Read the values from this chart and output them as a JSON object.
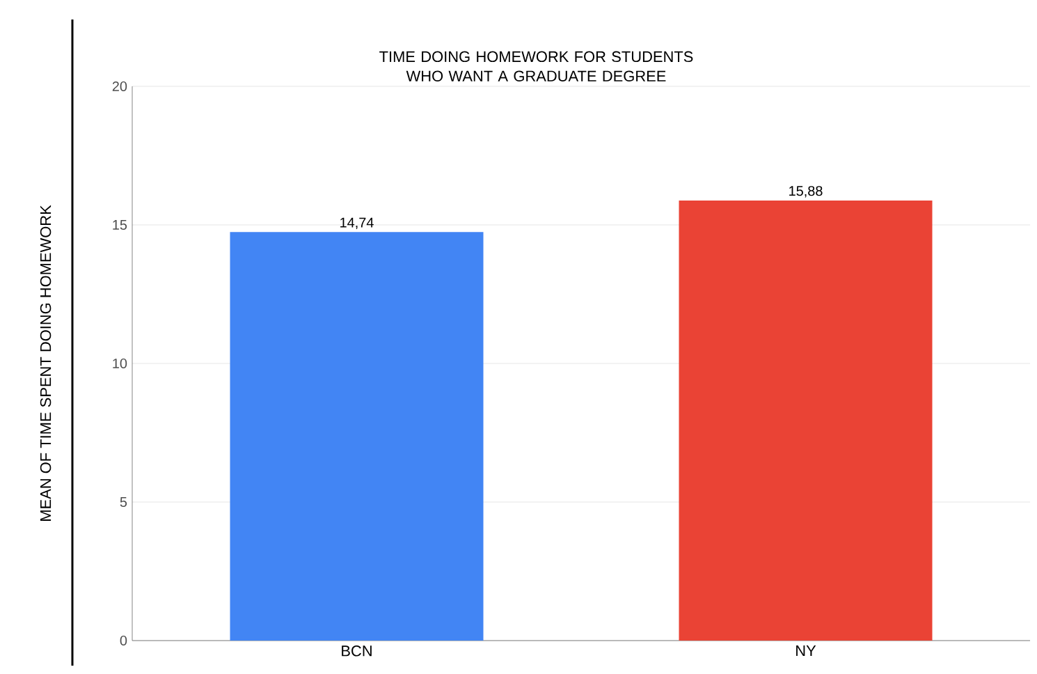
{
  "chart_data": {
    "type": "bar",
    "title": "TIME DOING HOMEWORK FOR STUDENTS WHO WANT A GRADUATE DEGREE",
    "ylabel": "MEAN OF TIME SPENT DOING HOMEWORK",
    "categories": [
      "BCN",
      "NY"
    ],
    "values": [
      14.74,
      15.88
    ],
    "colors": [
      "#4285f4",
      "#ea4335"
    ],
    "value_labels": [
      "14,74",
      "15,88"
    ],
    "ylim": [
      0,
      20
    ],
    "yticks": [
      0,
      5,
      10,
      15,
      20
    ],
    "grid": "y"
  }
}
